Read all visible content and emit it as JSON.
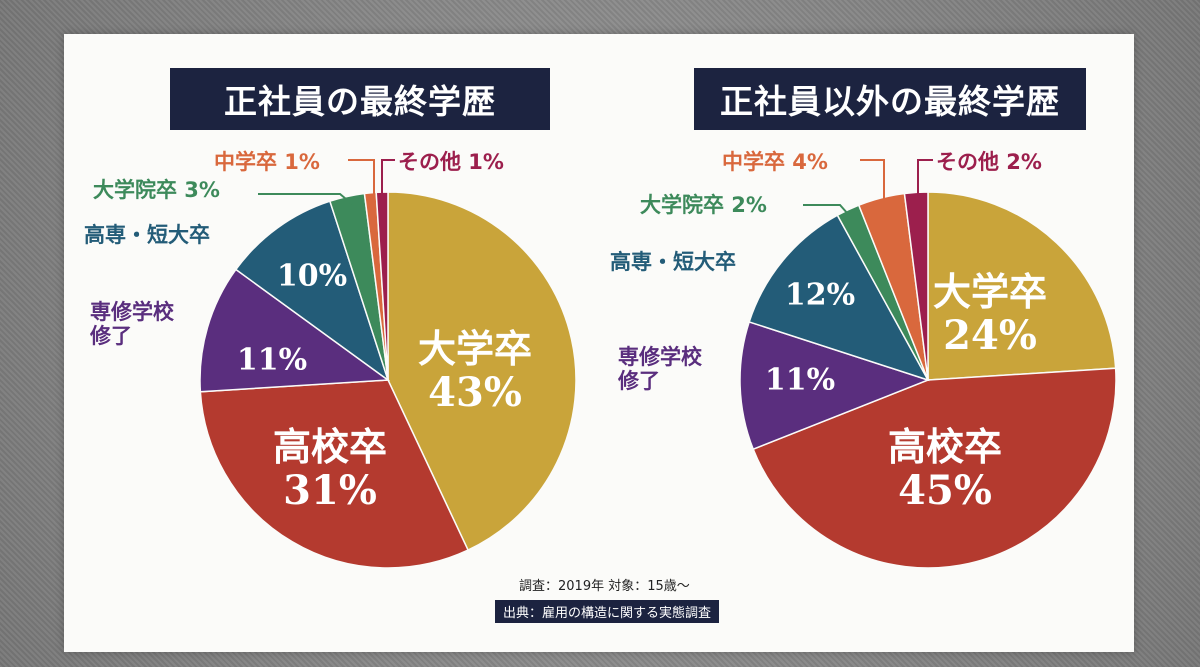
{
  "chart_data": [
    {
      "type": "pie",
      "title": "正社員の最終学歴",
      "slices": [
        {
          "label": "大学卒",
          "value": 43,
          "pct_text": "43%",
          "color": "#c9a43a",
          "inside": true
        },
        {
          "label": "高校卒",
          "value": 31,
          "pct_text": "31%",
          "color": "#b43a2f",
          "inside": true
        },
        {
          "label": "専修学校修了",
          "value": 11,
          "pct_text": "11%",
          "color": "#5a2e7e",
          "inside": true,
          "outside_label": "専修学校\n修了"
        },
        {
          "label": "高専・短大卒",
          "value": 10,
          "pct_text": "10%",
          "color": "#235c78",
          "inside": true,
          "outside_label": "高専・短大卒"
        },
        {
          "label": "大学院卒",
          "value": 3,
          "pct_text": "大学院卒 3%",
          "color": "#3d8a5b",
          "inside": false
        },
        {
          "label": "中学卒",
          "value": 1,
          "pct_text": "中学卒 1%",
          "color": "#d9683d",
          "inside": false
        },
        {
          "label": "その他",
          "value": 1,
          "pct_text": "その他 1%",
          "color": "#9c1f4d",
          "inside": false
        }
      ]
    },
    {
      "type": "pie",
      "title": "正社員以外の最終学歴",
      "slices": [
        {
          "label": "大学卒",
          "value": 24,
          "pct_text": "24%",
          "color": "#c9a43a",
          "inside": true
        },
        {
          "label": "高校卒",
          "value": 45,
          "pct_text": "45%",
          "color": "#b43a2f",
          "inside": true
        },
        {
          "label": "専修学校修了",
          "value": 11,
          "pct_text": "11%",
          "color": "#5a2e7e",
          "inside": true,
          "outside_label": "専修学校\n修了"
        },
        {
          "label": "高専・短大卒",
          "value": 12,
          "pct_text": "12%",
          "color": "#235c78",
          "inside": true,
          "outside_label": "高専・短大卒"
        },
        {
          "label": "大学院卒",
          "value": 2,
          "pct_text": "大学院卒 2%",
          "color": "#3d8a5b",
          "inside": false
        },
        {
          "label": "中学卒",
          "value": 4,
          "pct_text": "中学卒 4%",
          "color": "#d9683d",
          "inside": false
        },
        {
          "label": "その他",
          "value": 2,
          "pct_text": "その他 2%",
          "color": "#9c1f4d",
          "inside": false
        }
      ]
    }
  ],
  "footer": {
    "note": "調査：2019年 対象：15歳〜",
    "source": "出典：雇用の構造に関する実態調査"
  }
}
